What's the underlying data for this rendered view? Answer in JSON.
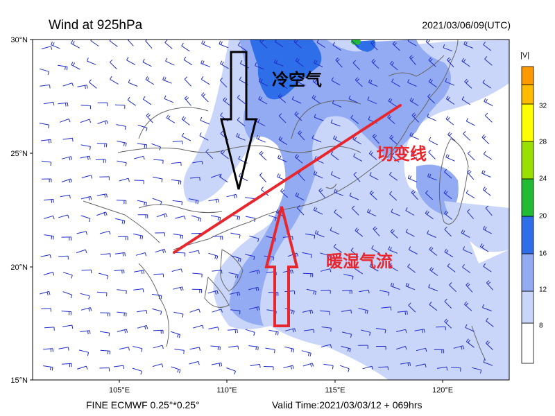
{
  "header": {
    "title": "Wind at 925hPa",
    "datetime": "2021/03/06/09(UTC)"
  },
  "footer": {
    "model": "FINE ECMWF 0.25°*0.25°",
    "valid_time": "Valid Time:2021/03/03/12 + 069hrs"
  },
  "axes": {
    "lat_labels": [
      "30°N",
      "25°N",
      "20°N",
      "15°N"
    ],
    "lon_labels": [
      "105°E",
      "110°E",
      "115°E",
      "120°E"
    ]
  },
  "colorbar": {
    "title": "|V|",
    "labels": [
      "8",
      "12",
      "16",
      "20",
      "24",
      "28",
      "32"
    ],
    "colors": [
      "#ffffff",
      "#c9d6fa",
      "#93abf2",
      "#2e6ee8",
      "#22bb33",
      "#99e000",
      "#ffff00",
      "#ffbb00",
      "#ff9900"
    ]
  },
  "annotations": {
    "cold_air": "冷空气",
    "shear_line": "切变线",
    "warm_moist_flow": "暖湿气流"
  },
  "colors": {
    "barb": "#1f2bc8",
    "annotation_red": "#e8262d",
    "arrow_black": "#000000"
  }
}
